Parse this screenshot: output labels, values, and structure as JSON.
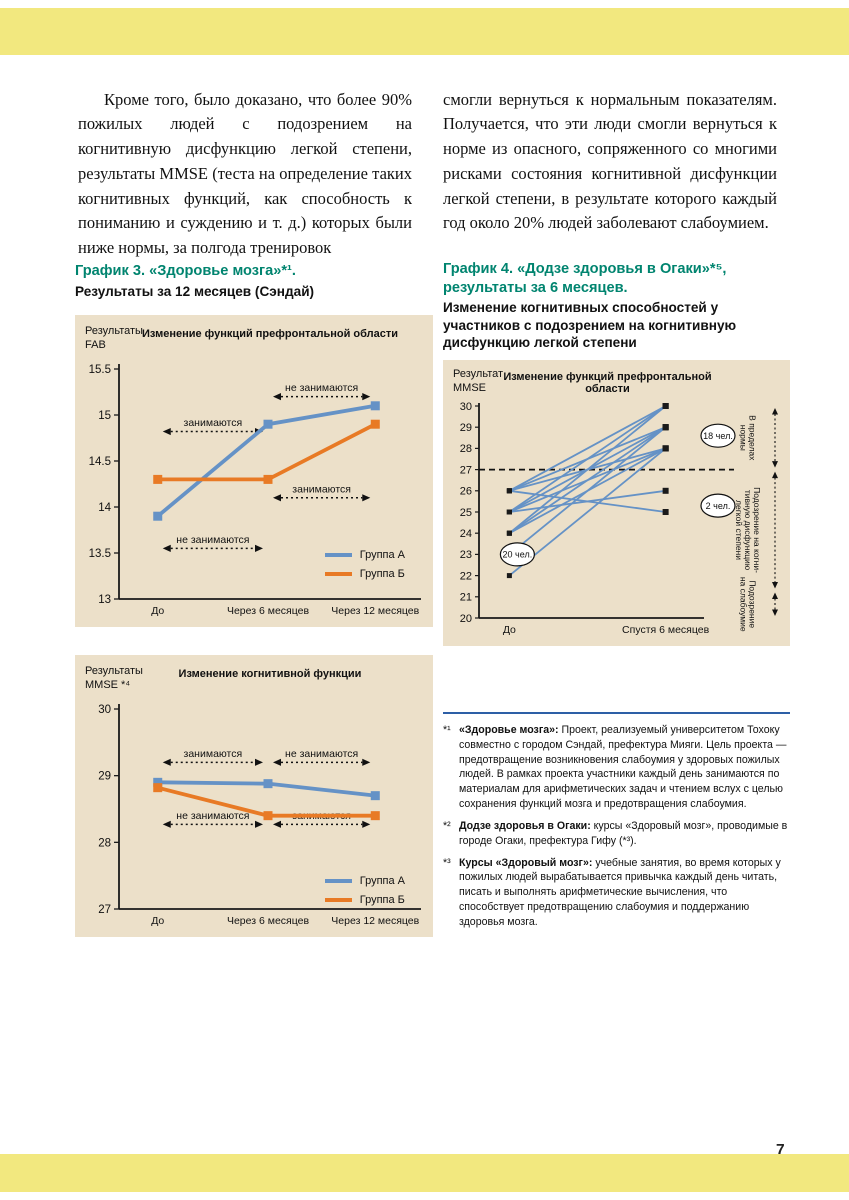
{
  "page": {
    "number": "7",
    "colors": {
      "band_yellow": "#f2e87f",
      "panel_beige": "#ece0c9",
      "heading_teal": "#00846f",
      "group_a_blue": "#6592c6",
      "group_b_orange": "#e87a25",
      "footnote_rule_blue": "#2d5fa6"
    }
  },
  "body": {
    "left_paragraph": "Кроме того, было доказано, что более 90% пожилых людей с подозрением на когнитивную дисфункцию легкой степени, результаты MMSE (теста на определение таких когнитивных функций, как способность к пониманию и суждению и т. д.) которых были ниже нормы, за полгода тренировок",
    "right_paragraph": "смогли вернуться к нормальным показателям. Получается, что эти люди смогли вернуться к норме из опасного, сопряженного со многими рисками состояния когнитивной дисфункции легкой степени, в результате которого каждый год около 20% людей заболевают слабоумием."
  },
  "chart3_section": {
    "heading": "График 3. «Здоровье мозга»*¹.",
    "subheading": "Результаты за 12 месяцев (Сэндай)"
  },
  "chart4_section": {
    "heading_line1": "График 4. «Додзе здоровья в Огаки»*⁵,",
    "heading_line2": "результаты за 6 месяцев.",
    "subheading": "Изменение когнитивных способностей у участников с подозрением на когнитивную дисфункцию легкой степени"
  },
  "chart_data": [
    {
      "id": "fab",
      "type": "line",
      "title": "Изменение функций префронтальной области",
      "ylabel": "Результаты\nFAB",
      "categories": [
        "До",
        "Через 6 месяцев",
        "Через 12 месяцев"
      ],
      "ylim": [
        13,
        15.5
      ],
      "yticks": [
        13,
        13.5,
        14,
        14.5,
        15,
        15.5
      ],
      "xfrac": [
        0.13,
        0.5,
        0.86
      ],
      "grid": false,
      "legend_position": "bottom-right-inside",
      "series": [
        {
          "name": "Группа А",
          "color": "#6592c6",
          "values": [
            13.9,
            14.9,
            15.1
          ]
        },
        {
          "name": "Группа Б",
          "color": "#e87a25",
          "values": [
            14.3,
            14.3,
            14.9
          ]
        }
      ],
      "annotations": [
        {
          "text": "не занимаются",
          "from": 1,
          "to": 2,
          "y": 15.2
        },
        {
          "text": "занимаются",
          "from": 0,
          "to": 1,
          "y": 14.82
        },
        {
          "text": "занимаются",
          "from": 1,
          "to": 2,
          "y": 14.1
        },
        {
          "text": "не занимаются",
          "from": 0,
          "to": 1,
          "y": 13.55
        }
      ]
    },
    {
      "id": "mmse12",
      "type": "line",
      "title": "Изменение когнитивной функции",
      "ylabel": "Результаты\nMMSE *⁴",
      "categories": [
        "До",
        "Через 6 месяцев",
        "Через 12 месяцев"
      ],
      "ylim": [
        27,
        30
      ],
      "yticks": [
        27,
        28,
        29,
        30
      ],
      "xfrac": [
        0.13,
        0.5,
        0.86
      ],
      "grid": false,
      "legend_position": "bottom-right-inside",
      "series": [
        {
          "name": "Группа А",
          "color": "#6592c6",
          "values": [
            28.9,
            28.88,
            28.7
          ]
        },
        {
          "name": "Группа Б",
          "color": "#e87a25",
          "values": [
            28.82,
            28.4,
            28.4
          ]
        }
      ],
      "annotations": [
        {
          "text": "занимаются",
          "from": 0,
          "to": 1,
          "y": 29.2
        },
        {
          "text": "не занимаются",
          "from": 1,
          "to": 2,
          "y": 29.2
        },
        {
          "text": "не занимаются",
          "from": 0,
          "to": 1,
          "y": 28.27
        },
        {
          "text": "занимаются",
          "from": 1,
          "to": 2,
          "y": 28.27
        }
      ]
    },
    {
      "id": "ogaki",
      "type": "line",
      "title": "Изменение функций префронтальной области",
      "ylabel": "Результат\nMMSE",
      "categories": [
        "До",
        "Спустя 6 месяцев"
      ],
      "ylim": [
        20,
        30
      ],
      "yticks": [
        20,
        21,
        22,
        23,
        24,
        25,
        26,
        27,
        28,
        29,
        30
      ],
      "xfrac": [
        0.14,
        0.86
      ],
      "threshold": 27,
      "line_color": "#6592c6",
      "lines": [
        [
          22,
          28
        ],
        [
          23,
          29
        ],
        [
          24,
          28
        ],
        [
          24,
          29
        ],
        [
          24,
          30
        ],
        [
          25,
          26
        ],
        [
          25,
          28
        ],
        [
          25,
          29
        ],
        [
          25,
          30
        ],
        [
          26,
          25
        ],
        [
          26,
          28
        ],
        [
          26,
          29
        ],
        [
          26,
          30
        ]
      ],
      "counts": [
        {
          "text": "20 чел.",
          "pos": "before",
          "y": 23
        },
        {
          "text": "18 чел.",
          "pos": "after",
          "y": 28.6
        },
        {
          "text": "2 чел.",
          "pos": "after",
          "y": 25.3
        }
      ],
      "bands": [
        {
          "label": "В пределах\nнормы",
          "range": [
            27,
            30
          ]
        },
        {
          "label": "Подозрение на когни-\nтивную дисфункцию\nлегкой степени",
          "range": [
            21.3,
            27
          ]
        },
        {
          "label": "Подозрение\nна слабоумие",
          "range": [
            20,
            21.3
          ]
        }
      ]
    }
  ],
  "footnotes": {
    "items": [
      {
        "marker": "*¹",
        "lead": "«Здоровье мозга»:",
        "text": "Проект, реализуемый университетом Тохоку совместно с городом Сэндай, префектура Мияги. Цель проекта — предотвращение возникновения слабоумия у здоровых пожилых людей. В рамках проекта участники каждый день занимаются по материалам для арифметических задач и чтением вслух с целью сохранения функций мозга и предотвращения слабоумия."
      },
      {
        "marker": "*²",
        "lead": "Додзе здоровья в Огаки:",
        "text": "курсы «Здоровый мозг», проводимые в городе Огаки, префектура Гифу (*³)."
      },
      {
        "marker": "*³",
        "lead": "Курсы «Здоровый мозг»:",
        "text": "учебные занятия, во время которых у пожилых людей вырабатывается привычка каждый день читать, писать и выполнять арифметические вычисления, что способствует предотвращению слабоумия и поддержанию здоровья мозга."
      }
    ]
  }
}
